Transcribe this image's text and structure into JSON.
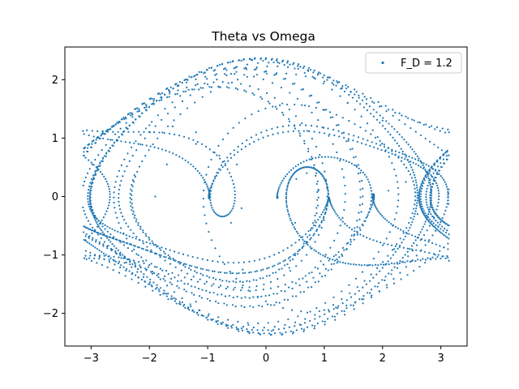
{
  "chart_data": {
    "type": "scatter",
    "title": "Theta vs Omega",
    "xlabel": "",
    "ylabel": "",
    "xlim": [
      -3.45,
      3.45
    ],
    "ylim": [
      -2.56,
      2.56
    ],
    "x_ticks": [
      -3,
      -2,
      -1,
      0,
      1,
      2,
      3
    ],
    "y_ticks": [
      -2,
      -1,
      0,
      1,
      2
    ],
    "grid": false,
    "legend": {
      "placement": "top-right",
      "entries": [
        "F_D = 1.2"
      ]
    },
    "series": [
      {
        "name": "F_D = 1.2",
        "color": "#1f77b4",
        "marker": "point",
        "description_values": "dense scattered points tracing the trajectory of a driven damped pendulum in theta range [-pi, pi] and omega range [-2.35, 2.35]",
        "sampled_points": [
          [
            -3.14,
            1.12
          ],
          [
            -2.8,
            1.12
          ],
          [
            -2.4,
            1.18
          ],
          [
            -2.0,
            1.22
          ],
          [
            -1.6,
            1.2
          ],
          [
            -1.2,
            1.1
          ],
          [
            -0.6,
            2.1
          ],
          [
            -0.25,
            2.34
          ],
          [
            0.2,
            2.3
          ],
          [
            0.8,
            2.05
          ],
          [
            1.4,
            1.6
          ],
          [
            2.0,
            1.3
          ],
          [
            3.14,
            1.1
          ],
          [
            -0.4,
            -1.25
          ],
          [
            0.4,
            -1.22
          ],
          [
            1.2,
            -1.0
          ],
          [
            2.2,
            -0.9
          ],
          [
            3.14,
            -1.1
          ],
          [
            -0.3,
            -2.2
          ],
          [
            0.1,
            -2.3
          ],
          [
            0.6,
            -2.2
          ],
          [
            1.2,
            -1.9
          ],
          [
            -1.2,
            -1.8
          ],
          [
            -2.0,
            -1.5
          ],
          [
            -0.6,
            -0.45
          ],
          [
            -0.95,
            0.1
          ],
          [
            -0.8,
            0.7
          ],
          [
            -0.5,
            0.55
          ],
          [
            -0.42,
            -0.2
          ],
          [
            0.7,
            0.4
          ],
          [
            0.9,
            0.1
          ],
          [
            0.85,
            -0.5
          ],
          [
            0.5,
            -0.45
          ],
          [
            0.52,
            0.3
          ],
          [
            -1.9,
            0.0
          ],
          [
            -1.7,
            0.55
          ],
          [
            -1.2,
            0.9
          ],
          [
            2.1,
            0.1
          ],
          [
            2.4,
            0.25
          ],
          [
            2.6,
            -0.3
          ]
        ]
      }
    ]
  }
}
